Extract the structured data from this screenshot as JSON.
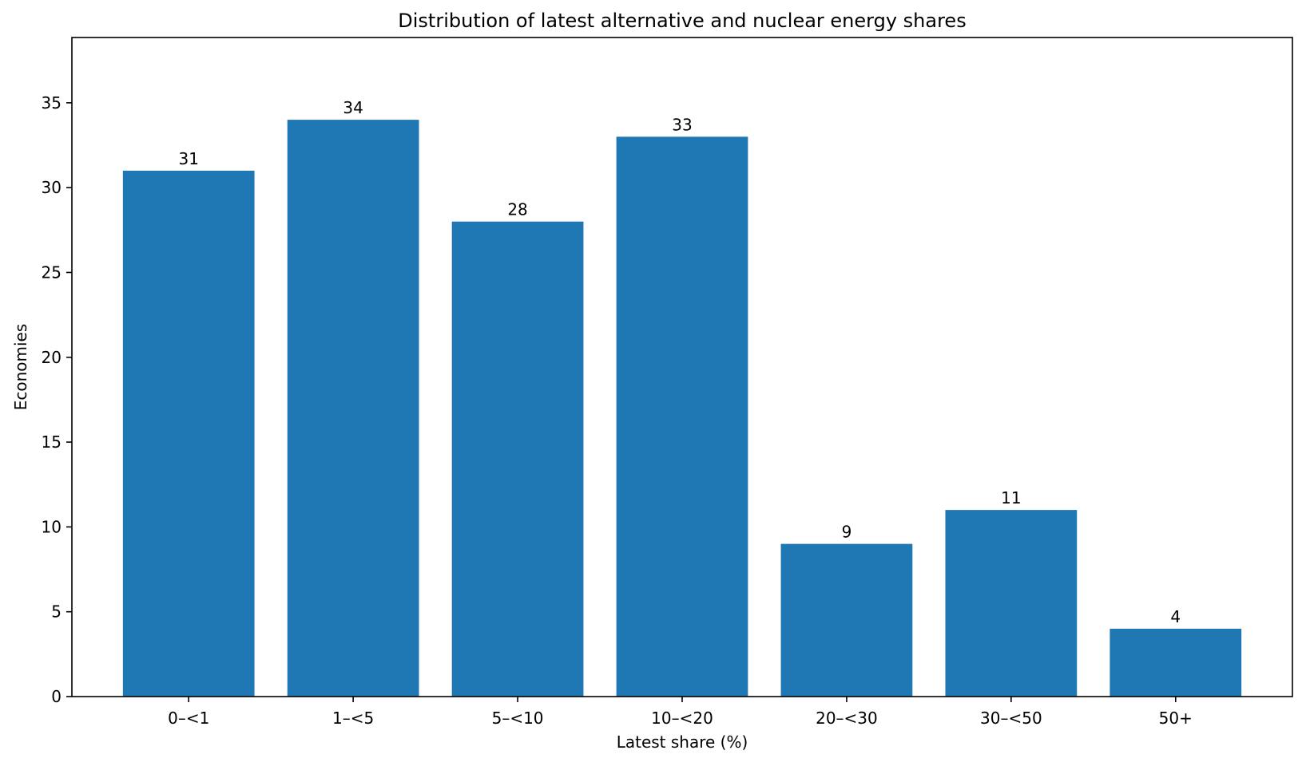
{
  "chart_data": {
    "type": "bar",
    "title": "Distribution of latest alternative and nuclear energy shares",
    "xlabel": "Latest share (%)",
    "ylabel": "Economies",
    "categories": [
      "0–<1",
      "1–<5",
      "5–<10",
      "10–<20",
      "20–<30",
      "30–<50",
      "50+"
    ],
    "values": [
      31,
      34,
      28,
      33,
      9,
      11,
      4
    ],
    "ylim": [
      0,
      38.85
    ],
    "yticks": [
      0,
      5,
      10,
      15,
      20,
      25,
      30,
      35
    ],
    "grid": false,
    "show_data_labels": true,
    "bar_color": "#1f77b4"
  }
}
